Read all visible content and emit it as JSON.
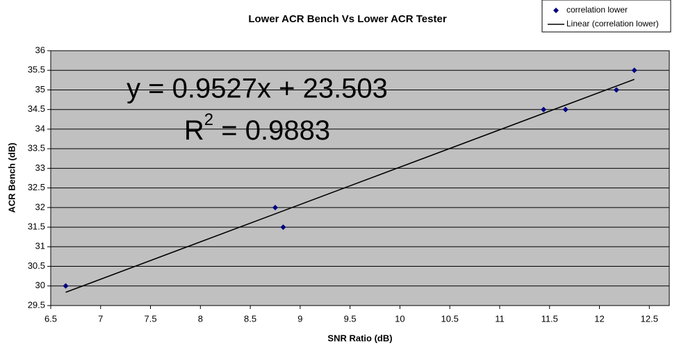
{
  "chart_data": {
    "type": "scatter",
    "title": "Lower ACR Bench Vs Lower ACR Tester",
    "x_label": "SNR Ratio (dB)",
    "y_label": "ACR Bench (dB)",
    "series": [
      {
        "name": "correlation lower",
        "color": "#000080",
        "x": [
          6.65,
          8.75,
          8.83,
          11.44,
          11.66,
          12.17,
          12.35
        ],
        "values": [
          30,
          32,
          31.5,
          34.5,
          34.5,
          35,
          35.5
        ]
      }
    ],
    "trendline": {
      "name": "Linear (correlation lower)",
      "color": "#000000",
      "slope": 0.9527,
      "intercept": 23.503
    },
    "equation": "y = 0.9527x + 23.503",
    "r_squared": {
      "symbol": "R",
      "power": "2",
      "text": " = 0.9883"
    },
    "xlim": [
      6.5,
      12.7
    ],
    "xticks": [
      6.5,
      7,
      7.5,
      8,
      8.5,
      9,
      9.5,
      10,
      10.5,
      11,
      11.5,
      12,
      12.5
    ],
    "ylim": [
      29.5,
      36
    ],
    "yticks": [
      29.5,
      30,
      30.5,
      31,
      31.5,
      32,
      32.5,
      33,
      33.5,
      34,
      34.5,
      35,
      35.5,
      36
    ],
    "grid": true,
    "plot_background": "#c0c0c0",
    "legend": "top-right"
  }
}
